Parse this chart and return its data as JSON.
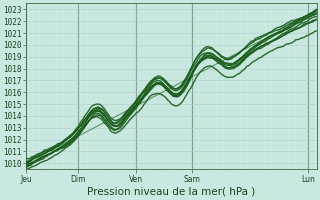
{
  "bg_color": "#c8e8e0",
  "plot_bg_color": "#c8e8e0",
  "grid_color_major": "#b0cccc",
  "grid_color_minor": "#c0dcd8",
  "line_color": "#1a5c1a",
  "ylim": [
    1009.5,
    1023.5
  ],
  "yticks": [
    1010,
    1011,
    1012,
    1013,
    1014,
    1015,
    1016,
    1017,
    1018,
    1019,
    1020,
    1021,
    1022,
    1023
  ],
  "xlabel": "Pression niveau de la mer( hPa )",
  "xtick_labels": [
    "Jeu",
    "Dim",
    "Ven",
    "Sam",
    "Lun"
  ],
  "xtick_positions": [
    0.0,
    0.18,
    0.38,
    0.57,
    0.97
  ],
  "tick_fontsize": 5.5,
  "xlabel_fontsize": 7.5,
  "figsize": [
    3.2,
    2.0
  ],
  "dpi": 100
}
